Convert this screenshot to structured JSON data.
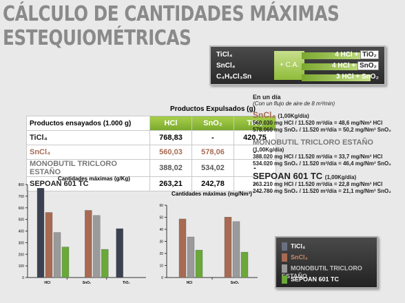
{
  "title": {
    "line1": "CÁLCULO DE CANTIDADES MÁXIMAS",
    "line2": "ESTEQUIOMÉTRICAS"
  },
  "reactions": {
    "catalyst": "+ C.A.",
    "rows": [
      {
        "left": "TiCl₄",
        "right_prefix": "4 HCl +",
        "right_box": "TiO₂"
      },
      {
        "left": "SnCl₄",
        "right_prefix": "4 HCl +",
        "right_box": "SnO₂"
      },
      {
        "left": "C₄H₉Cl₃Sn",
        "right_prefix": "3 HCl + SnO₂",
        "right_box": ""
      }
    ]
  },
  "table": {
    "group_header": "Productos Expulsados (g)",
    "row_header": "Productos ensayados (1.000 g)",
    "columns": [
      "HCl",
      "SnO₂",
      "TiO₂"
    ],
    "rows": [
      {
        "name": "TiCl₄",
        "values": [
          "768,83",
          "-",
          "420,75"
        ]
      },
      {
        "name": "SnCl₄",
        "values": [
          "560,03",
          "578,06",
          "-"
        ]
      },
      {
        "name": "MONOBUTIL TRICLORO ESTAÑO",
        "values": [
          "388,02",
          "534,02",
          "-"
        ]
      },
      {
        "name": "SEPOAN 601 TC",
        "values": [
          "263,21",
          "242,78",
          "-"
        ]
      }
    ]
  },
  "per_day": {
    "heading": "En un día",
    "subheading": "(Con un flujo de aire de 8 m³/min)",
    "blocks": [
      {
        "name": "SnCl₄",
        "rate": "(1,00Kg/día)",
        "lines": [
          "560.030 mg HCl / 11.520 m³/día = 48,6 mg/Nm³ HCl",
          "578.060 mg SnO₂ / 11.520 m³/día = 50,2 mg/Nm³ SnO₂"
        ]
      },
      {
        "name": "MONOBUTIL TRICLORO ESTAÑO",
        "rate": "(1,00Kg/día)",
        "lines": [
          "388.020 mg HCl / 11.520 m³/día = 33,7 mg/Nm³ HCl",
          "534.020 mg SnO₂ / 11.520 m³/día = 46,4 mg/Nm³ SnO₂"
        ]
      },
      {
        "name": "SEPOAN 601 TC",
        "rate": "(1,00Kg/día)",
        "lines": [
          "263.210 mg HCl / 11.520 m³/día = 22,8 mg/Nm³ HCl",
          "242.780 mg SnO₂ / 11.520 m³/día = 21,1 mg/Nm³ SnO₂"
        ]
      }
    ]
  },
  "legend": [
    "TiCl₄",
    "SnCl₄",
    "MONOBUTIL TRICLORO ESTAÑO",
    "SEPOAN 601 TC"
  ],
  "colors": {
    "ticl4": "#3b4150",
    "sncl4": "#a86a52",
    "mono": "#9a9a9a",
    "sepoan": "#6aa83a",
    "title": "#8a8a8a",
    "accent": "#8fbc3a"
  },
  "chart_data": [
    {
      "type": "bar",
      "title": "Cantidades máximas (g/Kg)",
      "categories": [
        "HCl",
        "SnO₂",
        "TiO₂"
      ],
      "ylim": [
        0,
        800
      ],
      "yticks": [
        "0",
        "100",
        "200",
        "300",
        "400",
        "500",
        "600",
        "700",
        "800"
      ],
      "series": [
        {
          "name": "TiCl₄",
          "values": [
            768.83,
            null,
            420.75
          ]
        },
        {
          "name": "SnCl₄",
          "values": [
            560.03,
            578.06,
            null
          ]
        },
        {
          "name": "MONOBUTIL TRICLORO ESTAÑO",
          "values": [
            388.02,
            534.02,
            null
          ]
        },
        {
          "name": "SEPOAN 601 TC",
          "values": [
            263.21,
            242.78,
            null
          ]
        }
      ]
    },
    {
      "type": "bar",
      "title": "Cantidades máximas (mg/Nm³)",
      "categories": [
        "HCl",
        "SnO₂"
      ],
      "ylim": [
        0,
        60
      ],
      "yticks": [
        "0",
        "10",
        "20",
        "30",
        "40",
        "50",
        "60"
      ],
      "series": [
        {
          "name": "SnCl₄",
          "values": [
            48.6,
            50.2
          ]
        },
        {
          "name": "MONOBUTIL TRICLORO ESTAÑO",
          "values": [
            33.7,
            46.4
          ]
        },
        {
          "name": "SEPOAN 601 TC",
          "values": [
            22.8,
            21.1
          ]
        }
      ]
    }
  ]
}
